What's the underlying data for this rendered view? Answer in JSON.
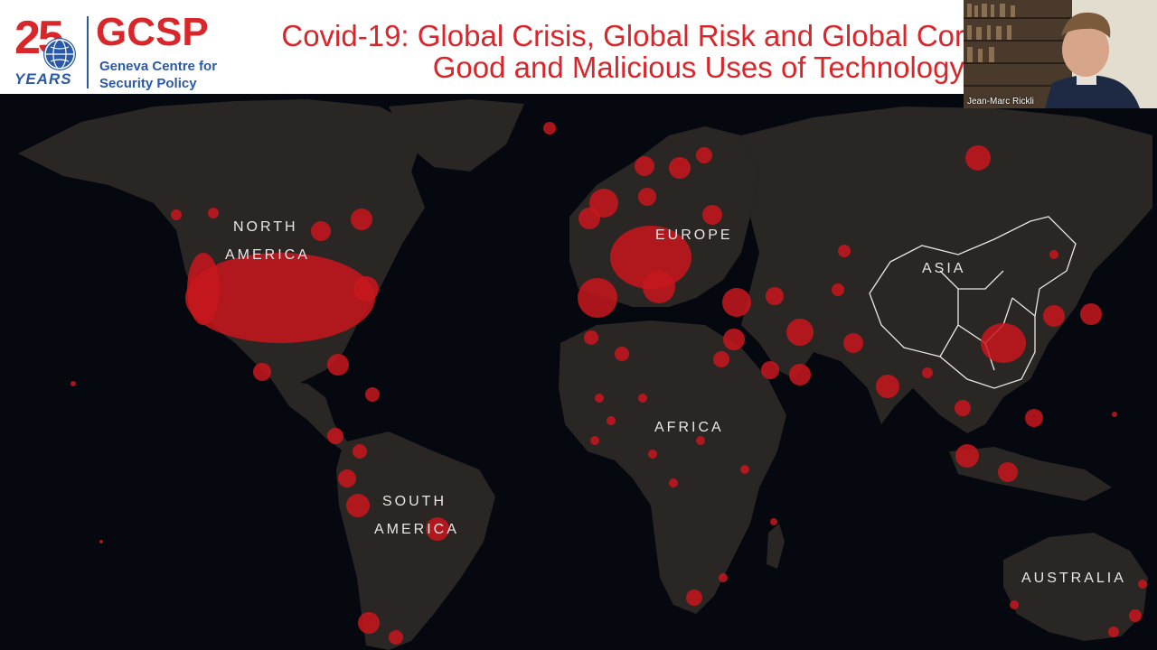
{
  "logo": {
    "years_number": "25",
    "years_word": "YEARS",
    "brand": "GCSP",
    "org_line1": "Geneva Centre for",
    "org_line2": "Security Policy"
  },
  "slide": {
    "title_line1": "Covid-19: Global Crisis, Global Risk and Global Cor",
    "title_line2": "Good and Malicious Uses of Technology"
  },
  "map": {
    "labels": {
      "north_america_1": "NORTH",
      "north_america_2": "AMERICA",
      "europe": "EUROPE",
      "asia": "ASIA",
      "africa": "AFRICA",
      "south_america_1": "SOUTH",
      "south_america_2": "AMERICA",
      "australia": "AUSTRALIA"
    },
    "colors": {
      "land": "#2a2624",
      "ocean": "#05080f",
      "case_dot": "#c8161d"
    }
  },
  "video": {
    "participant_name": "Jean-Marc Rickli"
  },
  "colors": {
    "brand_red": "#d9262a",
    "brand_blue": "#2a5aa6"
  }
}
